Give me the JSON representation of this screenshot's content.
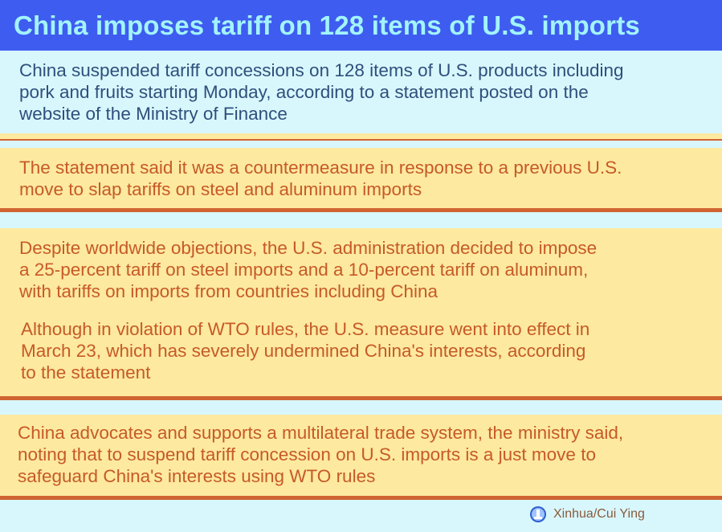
{
  "title": "China imposes tariff on 128 items of U.S. imports",
  "panels": [
    {
      "lines": [
        "China suspended tariff concessions on 128 items of U.S. products including",
        "pork and fruits starting Monday, according to a statement posted on the",
        "website of the Ministry of Finance"
      ]
    },
    {
      "lines": [
        "The statement said it was a countermeasure in response to a previous U.S.",
        "move to slap tariffs on steel and aluminum imports"
      ]
    },
    {
      "lines": [
        "Despite worldwide objections, the U.S. administration decided to impose",
        "a 25-percent tariff on steel imports and a 10-percent tariff on aluminum,",
        "with tariffs on imports from countries including China"
      ]
    },
    {
      "lines": [
        "Although in violation of WTO rules, the U.S. measure went into effect in",
        "March 23, which has severely undermined China's interests, according",
        "to the statement"
      ]
    },
    {
      "lines": [
        "China advocates and supports a multilateral trade system, the ministry said,",
        "noting that to suspend tariff concession on U.S. imports is a just move to",
        "safeguard China's interests using WTO rules"
      ]
    }
  ],
  "credit": "Xinhua/Cui Ying",
  "colors": {
    "title_bg": "#3f5cf0",
    "title_text": "#a2f4fb",
    "cyan_bg": "#d8f7fd",
    "yellow_bg": "#fde9a0",
    "orange": "#cf6432",
    "blue_text": "#2f4f7c"
  }
}
